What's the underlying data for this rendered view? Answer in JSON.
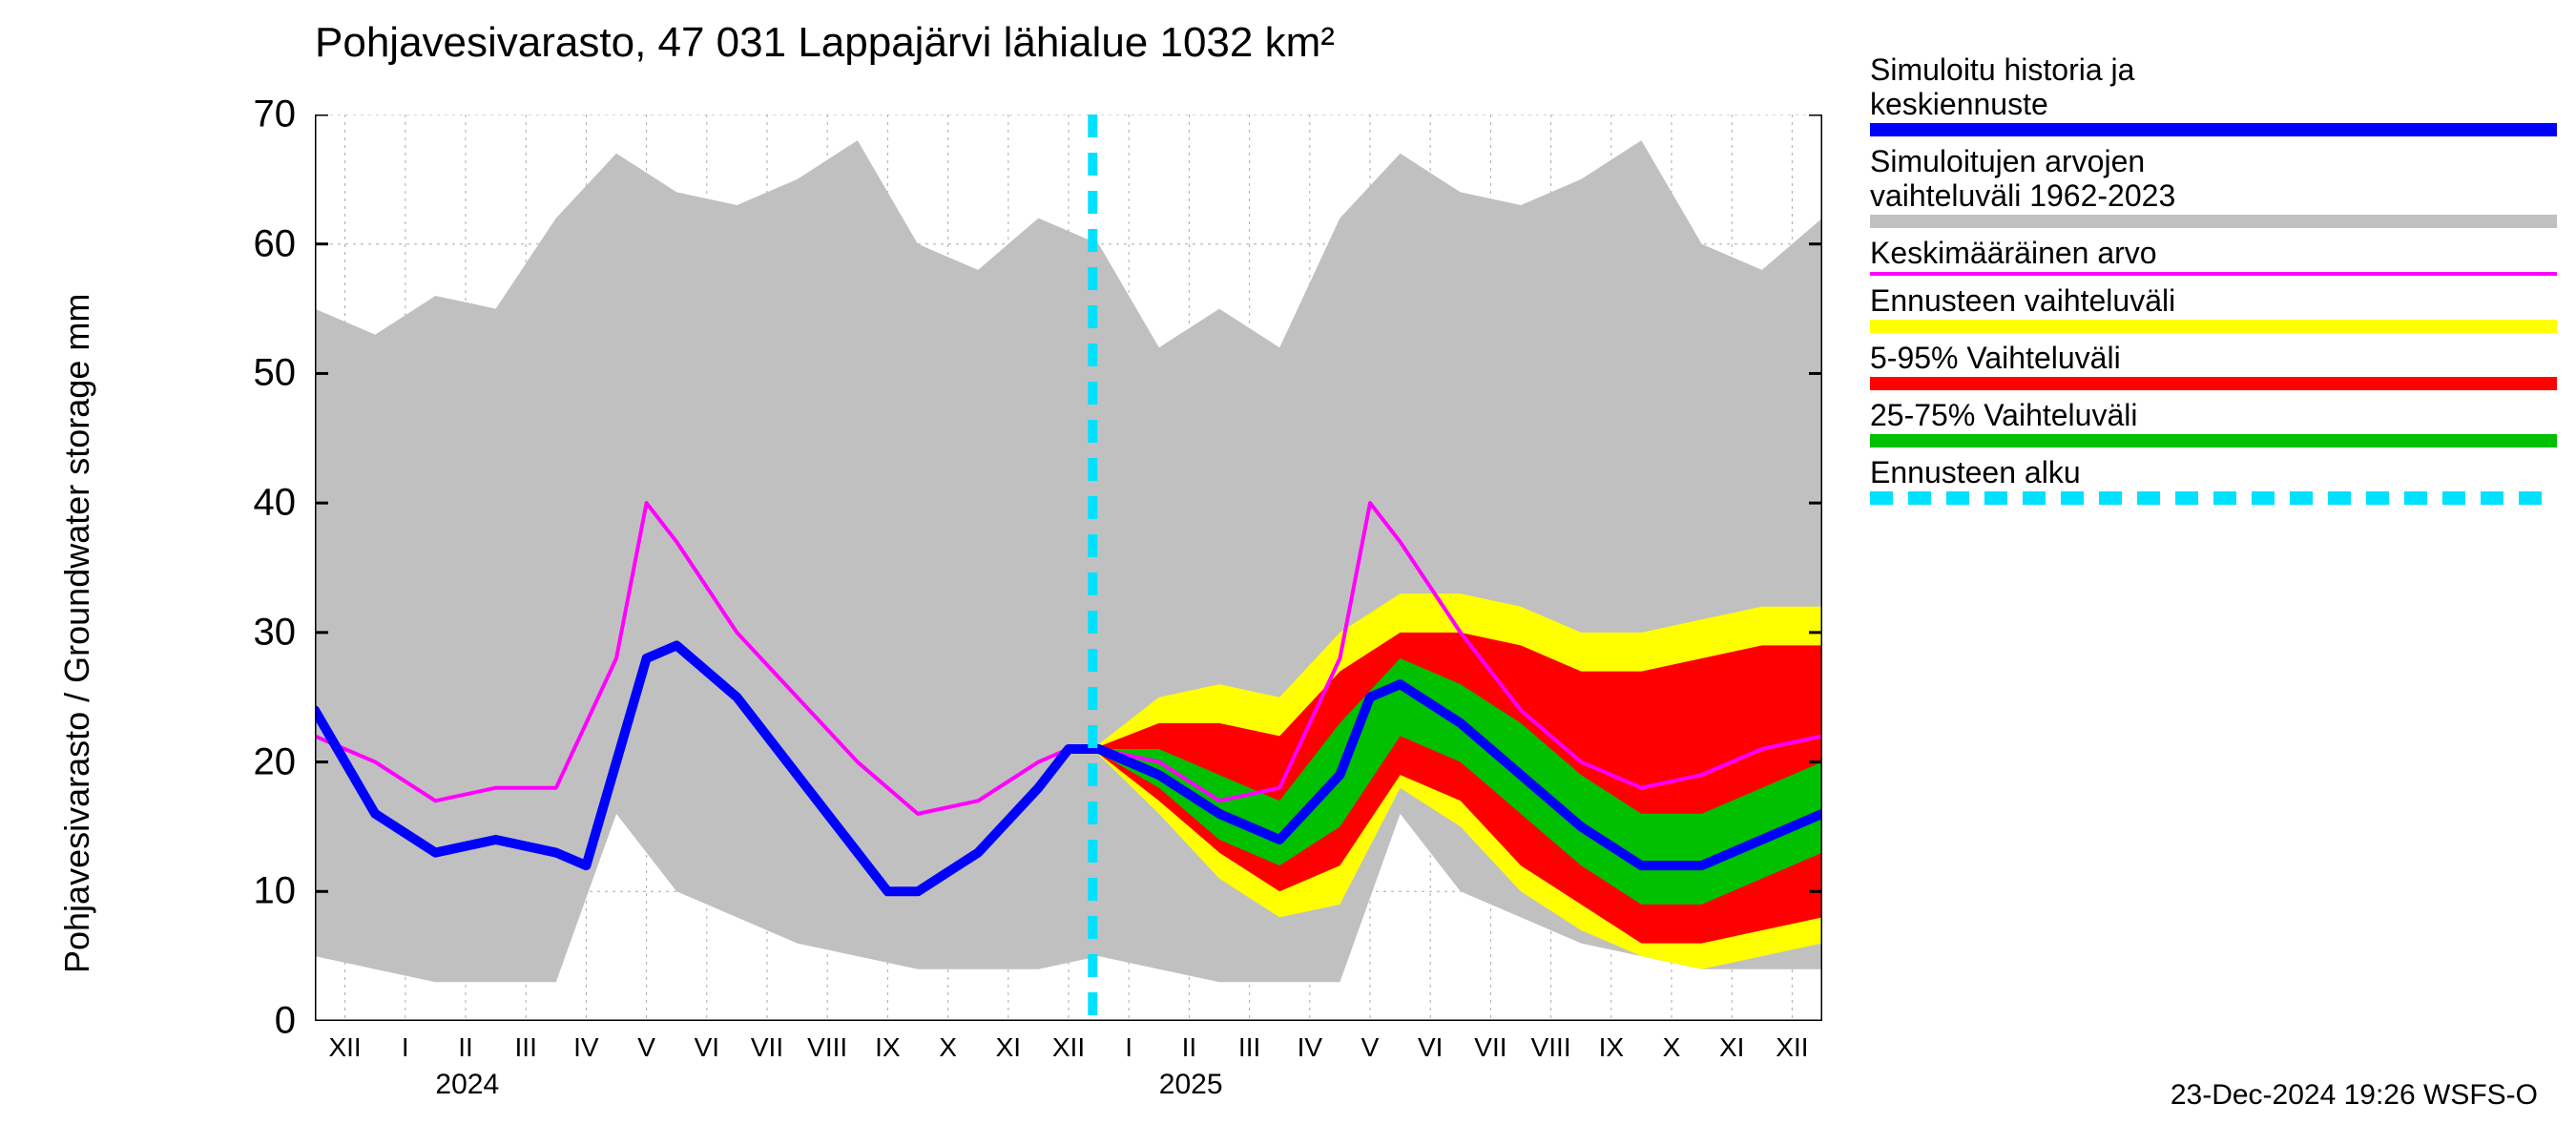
{
  "title": "Pohjavesivarasto, 47 031 Lappajärvi lähialue 1032 km²",
  "y_axis_label": "Pohjavesivarasto / Groundwater storage    mm",
  "footer": "23-Dec-2024 19:26 WSFS-O",
  "y_axis": {
    "min": 0,
    "max": 70,
    "ticks": [
      0,
      10,
      20,
      30,
      40,
      50,
      60,
      70
    ],
    "fontsize": 40
  },
  "x_axis": {
    "months": [
      "XII",
      "I",
      "II",
      "III",
      "IV",
      "V",
      "VI",
      "VII",
      "VIII",
      "IX",
      "X",
      "XI",
      "XII",
      "I",
      "II",
      "III",
      "IV",
      "V",
      "VI",
      "VII",
      "VIII",
      "IX",
      "X",
      "XI",
      "XII"
    ],
    "positions": [
      0.02,
      0.06,
      0.1,
      0.14,
      0.18,
      0.22,
      0.26,
      0.3,
      0.34,
      0.38,
      0.42,
      0.46,
      0.5,
      0.54,
      0.58,
      0.62,
      0.66,
      0.7,
      0.74,
      0.78,
      0.82,
      0.86,
      0.9,
      0.94,
      0.98
    ],
    "year_labels": [
      {
        "text": "2024",
        "pos": 0.08
      },
      {
        "text": "2025",
        "pos": 0.56
      }
    ],
    "fontsize": 28
  },
  "colors": {
    "background": "#ffffff",
    "grid": "#aaaaaa",
    "axis": "#000000",
    "grey_band": "#c0c0c0",
    "blue_line": "#0000ff",
    "magenta_line": "#ff00ff",
    "yellow_band": "#ffff00",
    "red_band": "#ff0000",
    "green_band": "#00c000",
    "cyan_dash": "#00e0ff"
  },
  "legend": {
    "items": [
      {
        "label": "Simuloitu historia ja\nkeskiennuste",
        "type": "solid",
        "color": "blue_line"
      },
      {
        "label": "Simuloitujen arvojen\nvaihteluväli 1962-2023",
        "type": "solid",
        "color": "grey_band"
      },
      {
        "label": "Keskimääräinen arvo",
        "type": "line",
        "color": "magenta_line"
      },
      {
        "label": "Ennusteen vaihteluväli",
        "type": "solid",
        "color": "yellow_band"
      },
      {
        "label": "5-95% Vaihteluväli",
        "type": "solid",
        "color": "red_band"
      },
      {
        "label": "25-75% Vaihteluväli",
        "type": "solid",
        "color": "green_band"
      },
      {
        "label": "Ennusteen alku",
        "type": "dash",
        "color": "cyan_dash"
      }
    ],
    "fontsize": 32
  },
  "forecast_start_x": 0.516,
  "line_styles": {
    "blue_width": 10,
    "magenta_width": 4,
    "cyan_width": 10,
    "cyan_dash": "24 16"
  },
  "grey_band_data": {
    "x": [
      0.0,
      0.04,
      0.08,
      0.12,
      0.16,
      0.2,
      0.24,
      0.28,
      0.32,
      0.36,
      0.4,
      0.44,
      0.48,
      0.52,
      0.56,
      0.6,
      0.64,
      0.68,
      0.72,
      0.76,
      0.8,
      0.84,
      0.88,
      0.92,
      0.96,
      1.0
    ],
    "upper": [
      55,
      53,
      56,
      55,
      62,
      67,
      64,
      63,
      65,
      68,
      60,
      58,
      62,
      60,
      52,
      55,
      52,
      62,
      67,
      64,
      63,
      65,
      68,
      60,
      58,
      62
    ],
    "lower": [
      5,
      4,
      3,
      3,
      3,
      16,
      10,
      8,
      6,
      5,
      4,
      4,
      4,
      5,
      4,
      3,
      3,
      3,
      16,
      10,
      8,
      6,
      5,
      4,
      4,
      4
    ]
  },
  "magenta_data": {
    "x": [
      0.0,
      0.04,
      0.08,
      0.12,
      0.16,
      0.2,
      0.22,
      0.24,
      0.28,
      0.32,
      0.36,
      0.4,
      0.44,
      0.48,
      0.5,
      0.52,
      0.56,
      0.6,
      0.64,
      0.68,
      0.7,
      0.72,
      0.76,
      0.8,
      0.84,
      0.88,
      0.92,
      0.96,
      1.0
    ],
    "y": [
      22,
      20,
      17,
      18,
      18,
      28,
      40,
      37,
      30,
      25,
      20,
      16,
      17,
      20,
      21,
      21,
      20,
      17,
      18,
      28,
      40,
      37,
      30,
      24,
      20,
      18,
      19,
      21,
      22
    ]
  },
  "blue_data": {
    "x": [
      0.0,
      0.02,
      0.04,
      0.08,
      0.12,
      0.16,
      0.18,
      0.2,
      0.22,
      0.24,
      0.28,
      0.32,
      0.36,
      0.38,
      0.4,
      0.44,
      0.48,
      0.5,
      0.52,
      0.56,
      0.6,
      0.64,
      0.68,
      0.7,
      0.72,
      0.76,
      0.8,
      0.84,
      0.88,
      0.92,
      0.96,
      1.0
    ],
    "y": [
      24,
      20,
      16,
      13,
      14,
      13,
      12,
      20,
      28,
      29,
      25,
      19,
      13,
      10,
      10,
      13,
      18,
      21,
      21,
      19,
      16,
      14,
      19,
      25,
      26,
      23,
      19,
      15,
      12,
      12,
      14,
      16
    ]
  },
  "yellow_band_data": {
    "x": [
      0.516,
      0.56,
      0.6,
      0.64,
      0.68,
      0.72,
      0.76,
      0.8,
      0.84,
      0.88,
      0.92,
      0.96,
      1.0
    ],
    "upper": [
      21,
      25,
      26,
      25,
      30,
      33,
      33,
      32,
      30,
      30,
      31,
      32,
      32
    ],
    "lower": [
      21,
      16,
      11,
      8,
      9,
      18,
      15,
      10,
      7,
      5,
      4,
      5,
      6
    ]
  },
  "red_band_data": {
    "x": [
      0.516,
      0.56,
      0.6,
      0.64,
      0.68,
      0.72,
      0.76,
      0.8,
      0.84,
      0.88,
      0.92,
      0.96,
      1.0
    ],
    "upper": [
      21,
      23,
      23,
      22,
      27,
      30,
      30,
      29,
      27,
      27,
      28,
      29,
      29
    ],
    "lower": [
      21,
      17,
      13,
      10,
      12,
      19,
      17,
      12,
      9,
      6,
      6,
      7,
      8
    ]
  },
  "green_band_data": {
    "x": [
      0.516,
      0.56,
      0.6,
      0.64,
      0.68,
      0.72,
      0.76,
      0.8,
      0.84,
      0.88,
      0.92,
      0.96,
      1.0
    ],
    "upper": [
      21,
      21,
      19,
      17,
      23,
      28,
      26,
      23,
      19,
      16,
      16,
      18,
      20
    ],
    "lower": [
      21,
      18,
      14,
      12,
      15,
      22,
      20,
      16,
      12,
      9,
      9,
      11,
      13
    ]
  }
}
